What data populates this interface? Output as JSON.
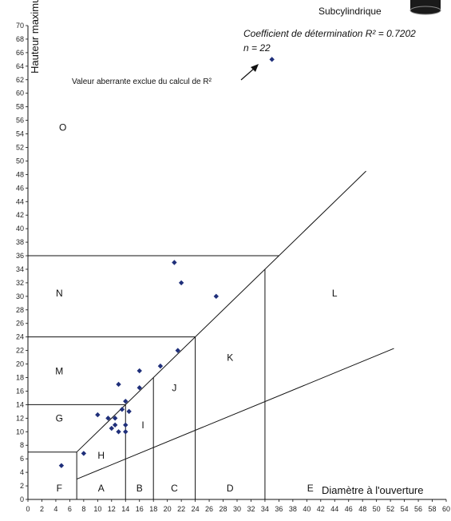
{
  "chart_data": {
    "type": "scatter",
    "xlabel": "Diamètre à l'ouverture",
    "ylabel": "Hauteur maximum",
    "xlim": [
      0,
      60
    ],
    "ylim": [
      0,
      70
    ],
    "x_ticks": [
      0,
      2,
      4,
      6,
      8,
      10,
      12,
      14,
      16,
      18,
      20,
      22,
      24,
      26,
      28,
      30,
      32,
      34,
      36,
      38,
      40,
      42,
      44,
      46,
      48,
      50,
      52,
      54,
      56,
      58,
      60
    ],
    "y_ticks": [
      0,
      2,
      4,
      6,
      8,
      10,
      12,
      14,
      16,
      18,
      20,
      22,
      24,
      26,
      28,
      30,
      32,
      34,
      36,
      38,
      40,
      42,
      44,
      46,
      48,
      50,
      52,
      54,
      56,
      58,
      60,
      62,
      64,
      66,
      68,
      70
    ],
    "legend": {
      "label": "Subcylindrique",
      "placement": "top-right"
    },
    "stat_r2": "Coefficient de détermination R² = 0.7202",
    "stat_n": "n = 22",
    "outlier_note": "Valeur aberrante exclue du calcul de R²",
    "points": [
      {
        "x": 4.8,
        "y": 5
      },
      {
        "x": 8,
        "y": 6.8
      },
      {
        "x": 10,
        "y": 12.5
      },
      {
        "x": 11.5,
        "y": 12
      },
      {
        "x": 12,
        "y": 10.5
      },
      {
        "x": 12.5,
        "y": 11
      },
      {
        "x": 12.5,
        "y": 12
      },
      {
        "x": 13,
        "y": 10
      },
      {
        "x": 13,
        "y": 17
      },
      {
        "x": 13.5,
        "y": 13.3
      },
      {
        "x": 14,
        "y": 10
      },
      {
        "x": 14,
        "y": 11
      },
      {
        "x": 14,
        "y": 14.5
      },
      {
        "x": 14.5,
        "y": 13
      },
      {
        "x": 16,
        "y": 16.5
      },
      {
        "x": 16,
        "y": 19
      },
      {
        "x": 19,
        "y": 19.7
      },
      {
        "x": 21.5,
        "y": 22
      },
      {
        "x": 21,
        "y": 35
      },
      {
        "x": 22,
        "y": 32
      },
      {
        "x": 27,
        "y": 30
      },
      {
        "x": 35,
        "y": 65
      }
    ],
    "zone_labels": [
      {
        "text": "O",
        "x": 5,
        "y": 54.5
      },
      {
        "text": "N",
        "x": 4.5,
        "y": 30
      },
      {
        "text": "M",
        "x": 4.5,
        "y": 18.5
      },
      {
        "text": "G",
        "x": 4.5,
        "y": 11.5
      },
      {
        "text": "F",
        "x": 4.5,
        "y": 1.2
      },
      {
        "text": "A",
        "x": 10.5,
        "y": 1.2
      },
      {
        "text": "B",
        "x": 16,
        "y": 1.2
      },
      {
        "text": "C",
        "x": 21,
        "y": 1.2
      },
      {
        "text": "D",
        "x": 29,
        "y": 1.2
      },
      {
        "text": "E",
        "x": 40.5,
        "y": 1.2
      },
      {
        "text": "H",
        "x": 10.5,
        "y": 6
      },
      {
        "text": "I",
        "x": 16.5,
        "y": 10.5
      },
      {
        "text": "J",
        "x": 21,
        "y": 16
      },
      {
        "text": "K",
        "x": 29,
        "y": 20.5
      },
      {
        "text": "L",
        "x": 44,
        "y": 30
      }
    ],
    "region_lines": [
      {
        "x1": 0,
        "y1": 7,
        "x2": 7,
        "y2": 7
      },
      {
        "x1": 0,
        "y1": 14,
        "x2": 14,
        "y2": 14
      },
      {
        "x1": 0,
        "y1": 24,
        "x2": 24,
        "y2": 24
      },
      {
        "x1": 0,
        "y1": 36,
        "x2": 36,
        "y2": 36
      },
      {
        "x1": 7,
        "y1": 0,
        "x2": 7,
        "y2": 7
      },
      {
        "x1": 14,
        "y1": 0,
        "x2": 14,
        "y2": 14
      },
      {
        "x1": 18,
        "y1": 0,
        "x2": 18,
        "y2": 18
      },
      {
        "x1": 24,
        "y1": 0,
        "x2": 24,
        "y2": 24
      },
      {
        "x1": 34,
        "y1": 0,
        "x2": 34,
        "y2": 34
      },
      {
        "x1": 7,
        "y1": 7,
        "x2": 48.5,
        "y2": 48.5
      },
      {
        "x1": 7,
        "y1": 3,
        "x2": 52.5,
        "y2": 22.3
      }
    ]
  }
}
